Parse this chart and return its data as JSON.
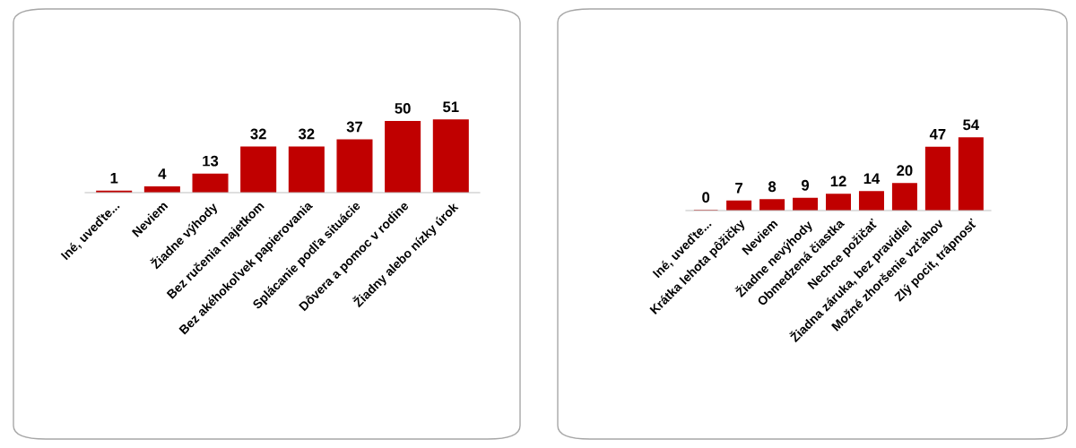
{
  "chart_data": [
    {
      "type": "bar",
      "categories": [
        "Iné, uveďte...",
        "Neviem",
        "Žiadne výhody",
        "Bez ručenia majetkom",
        "Bez akéhokoľvek papierovania",
        "Splácanie podľa situácie",
        "Dôvera a pomoc v rodine",
        "Žiadny alebo nízky úrok"
      ],
      "values": [
        1,
        4,
        13,
        32,
        32,
        37,
        50,
        51
      ],
      "color": "#c00000",
      "data_labels": true
    },
    {
      "type": "bar",
      "categories": [
        "Iné, uveďte...",
        "Krátka lehota pôžičky",
        "Neviem",
        "Žiadne nevýhody",
        "Obmedzená čiastka",
        "Nechce požičať",
        "Žiadna záruka, bez pravidiel",
        "Možné zhoršenie vzťahov",
        "Zlý pocit, trápnosť"
      ],
      "values": [
        0,
        7,
        8,
        9,
        12,
        14,
        20,
        47,
        54
      ],
      "color": "#c00000",
      "data_labels": true
    }
  ]
}
